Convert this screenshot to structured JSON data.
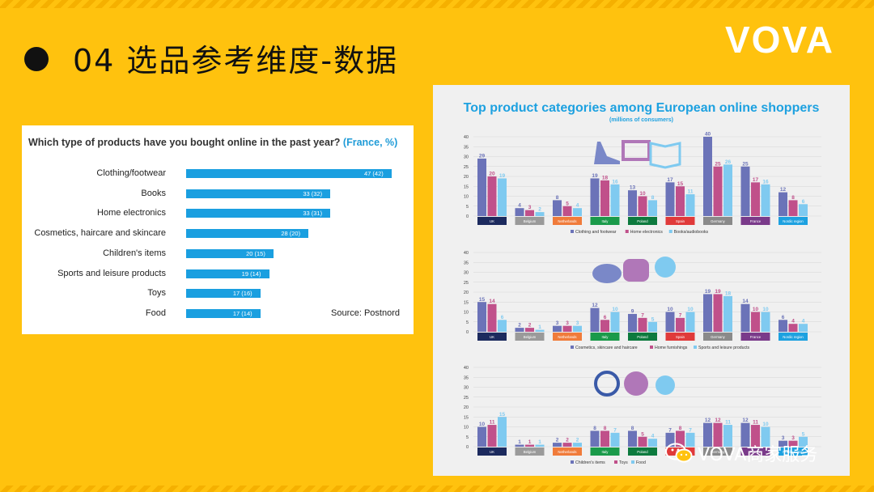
{
  "slide": {
    "title": "04 选品参考维度-数据",
    "logo": "VOVA",
    "watermark": "VOVA商家服务",
    "accent": "#ffc20e"
  },
  "left_chart": {
    "question": "Which type of products have you bought online in the past year? ",
    "question_highlight": "(France, %)",
    "source": "Source: Postnord",
    "bar_color": "#1a9fe0",
    "chart_data": {
      "type": "bar",
      "orientation": "horizontal",
      "categories": [
        "Clothing/footwear",
        "Books",
        "Home electronics",
        "Cosmetics, haircare and skincare",
        "Children's items",
        "Sports and leisure products",
        "Toys",
        "Food"
      ],
      "values": [
        47,
        33,
        33,
        28,
        20,
        19,
        17,
        17
      ],
      "previous": [
        42,
        32,
        31,
        20,
        15,
        14,
        16,
        14
      ],
      "labels": [
        "47 (42)",
        "33 (32)",
        "33 (31)",
        "28 (20)",
        "20 (15)",
        "19 (14)",
        "17 (16)",
        "17 (14)"
      ]
    }
  },
  "right_chart": {
    "title": "Top product categories among European online shoppers",
    "subtitle": "(millions of consumers)",
    "countries": [
      "UK",
      "Belgium",
      "Netherlands",
      "Italy",
      "Poland",
      "Spain",
      "Germany",
      "France",
      "Nordic region"
    ],
    "country_colors": [
      "#1c2a5e",
      "#9a9a9a",
      "#f07b3a",
      "#1a9a4a",
      "#0d7a3e",
      "#e03a3a",
      "#8a8a8a",
      "#7a3a8a",
      "#1da1e0"
    ],
    "series_colors": [
      "#6b73b8",
      "#c0508a",
      "#7fcaf0"
    ],
    "yticks": [
      0,
      5,
      10,
      15,
      20,
      25,
      30,
      35,
      40
    ],
    "ylim": [
      0,
      40
    ],
    "icons": [
      [
        "shoe-icon",
        "monitor-icon",
        "book-icon"
      ],
      [
        "perfume-icon",
        "armchair-icon",
        "paddle-icon"
      ],
      [
        "pacifier-icon",
        "teddy-bear-icon",
        "grapes-icon"
      ]
    ],
    "chart_data": [
      {
        "type": "bar",
        "categories": [
          "UK",
          "Belgium",
          "Netherlands",
          "Italy",
          "Poland",
          "Spain",
          "Germany",
          "France",
          "Nordic region"
        ],
        "series": [
          {
            "name": "Clothing and footwear",
            "values": [
              29,
              4,
              8,
              19,
              13,
              17,
              40,
              25,
              12
            ]
          },
          {
            "name": "Home electronics",
            "values": [
              20,
              3,
              5,
              18,
              10,
              15,
              25,
              17,
              8
            ]
          },
          {
            "name": "Books/audiobooks",
            "values": [
              19,
              2,
              4,
              16,
              8,
              11,
              26,
              16,
              6
            ]
          }
        ],
        "ylim": [
          0,
          40
        ]
      },
      {
        "type": "bar",
        "categories": [
          "UK",
          "Belgium",
          "Netherlands",
          "Italy",
          "Poland",
          "Spain",
          "Germany",
          "France",
          "Nordic region"
        ],
        "series": [
          {
            "name": "Cosmetics, skincare and haircare",
            "values": [
              15,
              2,
              3,
              12,
              9,
              10,
              19,
              14,
              6
            ]
          },
          {
            "name": "Home furnishings",
            "values": [
              14,
              2,
              3,
              6,
              7,
              7,
              19,
              10,
              4
            ]
          },
          {
            "name": "Sports and leisure products",
            "values": [
              6,
              1,
              3,
              10,
              5,
              10,
              18,
              10,
              4
            ]
          }
        ],
        "ylim": [
          0,
          40
        ]
      },
      {
        "type": "bar",
        "categories": [
          "UK",
          "Belgium",
          "Netherlands",
          "Italy",
          "Poland",
          "Spain",
          "Germany",
          "France",
          "Nordic region"
        ],
        "series": [
          {
            "name": "Children's items",
            "values": [
              10,
              1,
              2,
              8,
              8,
              7,
              12,
              12,
              3
            ]
          },
          {
            "name": "Toys",
            "values": [
              11,
              1,
              2,
              8,
              5,
              8,
              12,
              11,
              3
            ]
          },
          {
            "name": "Food",
            "values": [
              15,
              1,
              2,
              7,
              4,
              7,
              11,
              10,
              5
            ]
          }
        ],
        "ylim": [
          0,
          40
        ]
      }
    ]
  }
}
